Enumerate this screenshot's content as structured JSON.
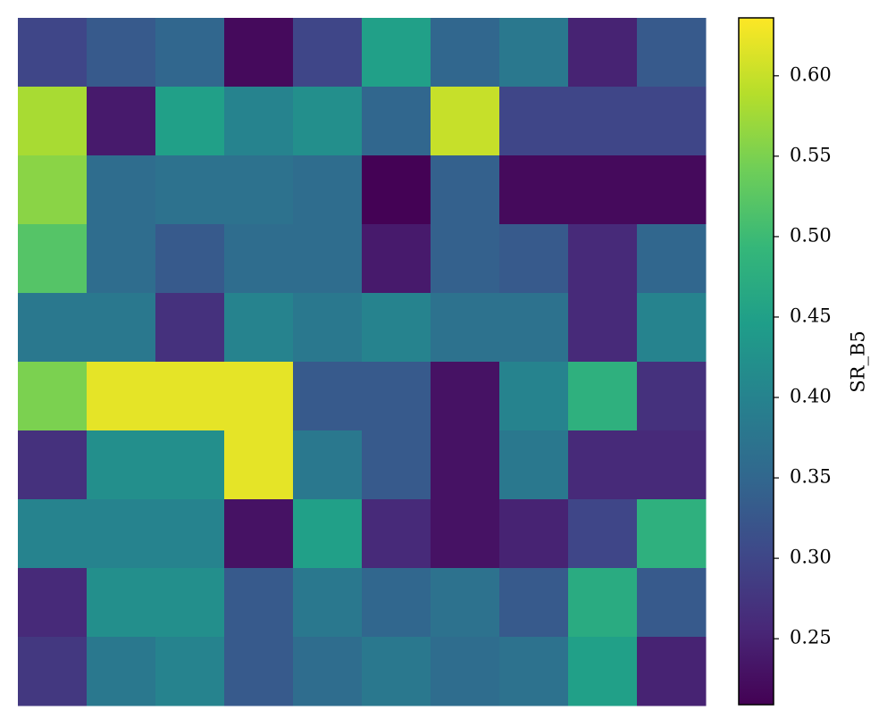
{
  "chart_data": {
    "type": "image",
    "colormap": "viridis",
    "colorbar_label": "SR_B5",
    "clim": [
      0.209,
      0.636
    ],
    "cticks": [
      0.25,
      {
        "value": 0.3,
        "label": "0.30"
      },
      0.35,
      {
        "value": 0.4,
        "label": "0.40"
      },
      0.45,
      {
        "value": 0.5,
        "label": "0.50"
      },
      0.55,
      {
        "value": 0.6,
        "label": "0.60"
      }
    ],
    "values": [
      [
        0.3,
        0.33,
        0.35,
        0.22,
        0.3,
        0.45,
        0.35,
        0.38,
        0.25,
        0.33
      ],
      [
        0.58,
        0.24,
        0.45,
        0.4,
        0.42,
        0.35,
        0.6,
        0.3,
        0.3,
        0.3
      ],
      [
        0.56,
        0.36,
        0.37,
        0.37,
        0.36,
        0.21,
        0.34,
        0.22,
        0.22,
        0.22
      ],
      [
        0.52,
        0.36,
        0.33,
        0.36,
        0.36,
        0.24,
        0.34,
        0.33,
        0.26,
        0.35
      ],
      [
        0.38,
        0.38,
        0.27,
        0.4,
        0.38,
        0.4,
        0.37,
        0.37,
        0.26,
        0.4
      ],
      [
        0.55,
        0.62,
        0.62,
        0.62,
        0.33,
        0.33,
        0.23,
        0.4,
        0.48,
        0.27
      ],
      [
        0.27,
        0.42,
        0.42,
        0.62,
        0.38,
        0.33,
        0.23,
        0.38,
        0.26,
        0.26
      ],
      [
        0.4,
        0.4,
        0.4,
        0.23,
        0.45,
        0.26,
        0.23,
        0.25,
        0.3,
        0.48
      ],
      [
        0.26,
        0.42,
        0.42,
        0.33,
        0.38,
        0.35,
        0.37,
        0.33,
        0.47,
        0.33
      ],
      [
        0.28,
        0.38,
        0.4,
        0.33,
        0.36,
        0.38,
        0.36,
        0.37,
        0.45,
        0.25
      ]
    ]
  }
}
